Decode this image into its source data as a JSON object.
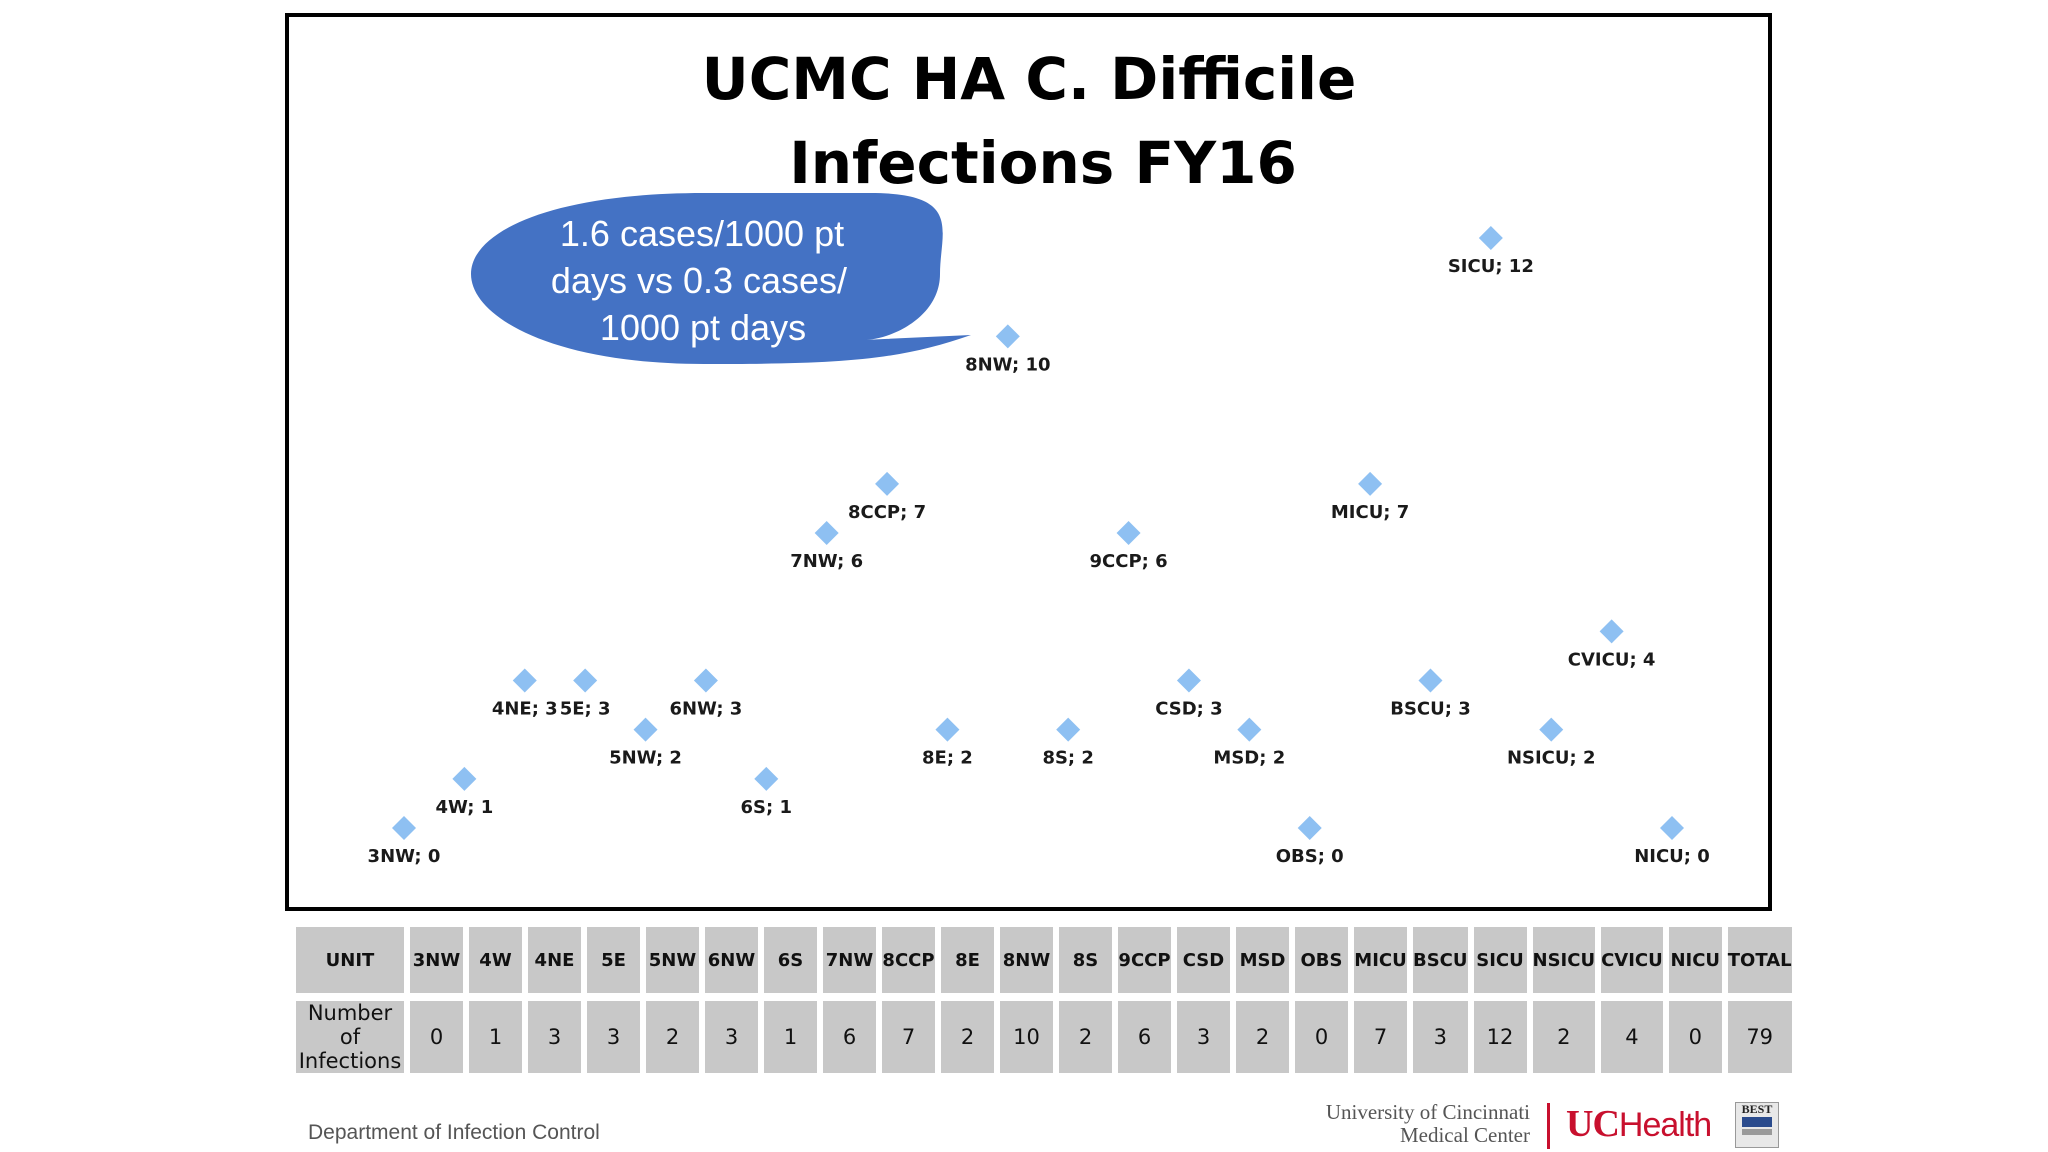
{
  "chart_data": {
    "type": "scatter",
    "title_lines": [
      "UCMC HA C. Difficile",
      "Infections FY16"
    ],
    "xlabel": "",
    "ylabel": "",
    "ylim": [
      0,
      12
    ],
    "grid": false,
    "marker": "diamond",
    "marker_color": "#8ec0f2",
    "points": [
      {
        "unit": "3NW",
        "value": 0,
        "label": "3NW; 0"
      },
      {
        "unit": "4W",
        "value": 1,
        "label": "4W; 1"
      },
      {
        "unit": "4NE",
        "value": 3,
        "label": "4NE; 3"
      },
      {
        "unit": "5E",
        "value": 3,
        "label": "5E; 3"
      },
      {
        "unit": "5NW",
        "value": 2,
        "label": "5NW; 2"
      },
      {
        "unit": "6NW",
        "value": 3,
        "label": "6NW; 3"
      },
      {
        "unit": "6S",
        "value": 1,
        "label": "6S; 1"
      },
      {
        "unit": "7NW",
        "value": 6,
        "label": "7NW; 6"
      },
      {
        "unit": "8CCP",
        "value": 7,
        "label": "8CCP; 7"
      },
      {
        "unit": "8E",
        "value": 2,
        "label": "8E; 2"
      },
      {
        "unit": "8NW",
        "value": 10,
        "label": "8NW; 10"
      },
      {
        "unit": "8S",
        "value": 2,
        "label": "8S; 2"
      },
      {
        "unit": "9CCP",
        "value": 6,
        "label": "9CCP; 6"
      },
      {
        "unit": "CSD",
        "value": 3,
        "label": "CSD; 3"
      },
      {
        "unit": "MSD",
        "value": 2,
        "label": "MSD; 2"
      },
      {
        "unit": "OBS",
        "value": 0,
        "label": "OBS; 0"
      },
      {
        "unit": "MICU",
        "value": 7,
        "label": "MICU; 7"
      },
      {
        "unit": "BSCU",
        "value": 3,
        "label": "BSCU; 3"
      },
      {
        "unit": "SICU",
        "value": 12,
        "label": "SICU; 12"
      },
      {
        "unit": "NSICU",
        "value": 2,
        "label": "NSICU; 2"
      },
      {
        "unit": "CVICU",
        "value": 4,
        "label": "CVICU; 4"
      },
      {
        "unit": "NICU",
        "value": 0,
        "label": "NICU; 0"
      }
    ],
    "annotation": {
      "lines": [
        "1.6 cases/1000 pt",
        "days vs 0.3 cases/",
        "1000 pt days"
      ],
      "points_to": "8NW",
      "color": "#4472c4"
    }
  },
  "table": {
    "row_headers": [
      "UNIT",
      "Number of Infections"
    ],
    "units": [
      "3NW",
      "4W",
      "4NE",
      "5E",
      "5NW",
      "6NW",
      "6S",
      "7NW",
      "8CCP",
      "8E",
      "8NW",
      "8S",
      "9CCP",
      "CSD",
      "MSD",
      "OBS",
      "MICU",
      "BSCU",
      "SICU",
      "NSICU",
      "CVICU",
      "NICU",
      "TOTAL"
    ],
    "values": [
      "0",
      "1",
      "3",
      "3",
      "2",
      "3",
      "1",
      "6",
      "7",
      "2",
      "10",
      "2",
      "6",
      "3",
      "2",
      "0",
      "7",
      "3",
      "12",
      "2",
      "4",
      "0",
      "79"
    ]
  },
  "footer": {
    "department": "Department of Infection Control",
    "university_line1": "University of Cincinnati",
    "university_line2": "Medical Center",
    "health_logo_text": "Health",
    "badge_text": "BEST"
  }
}
